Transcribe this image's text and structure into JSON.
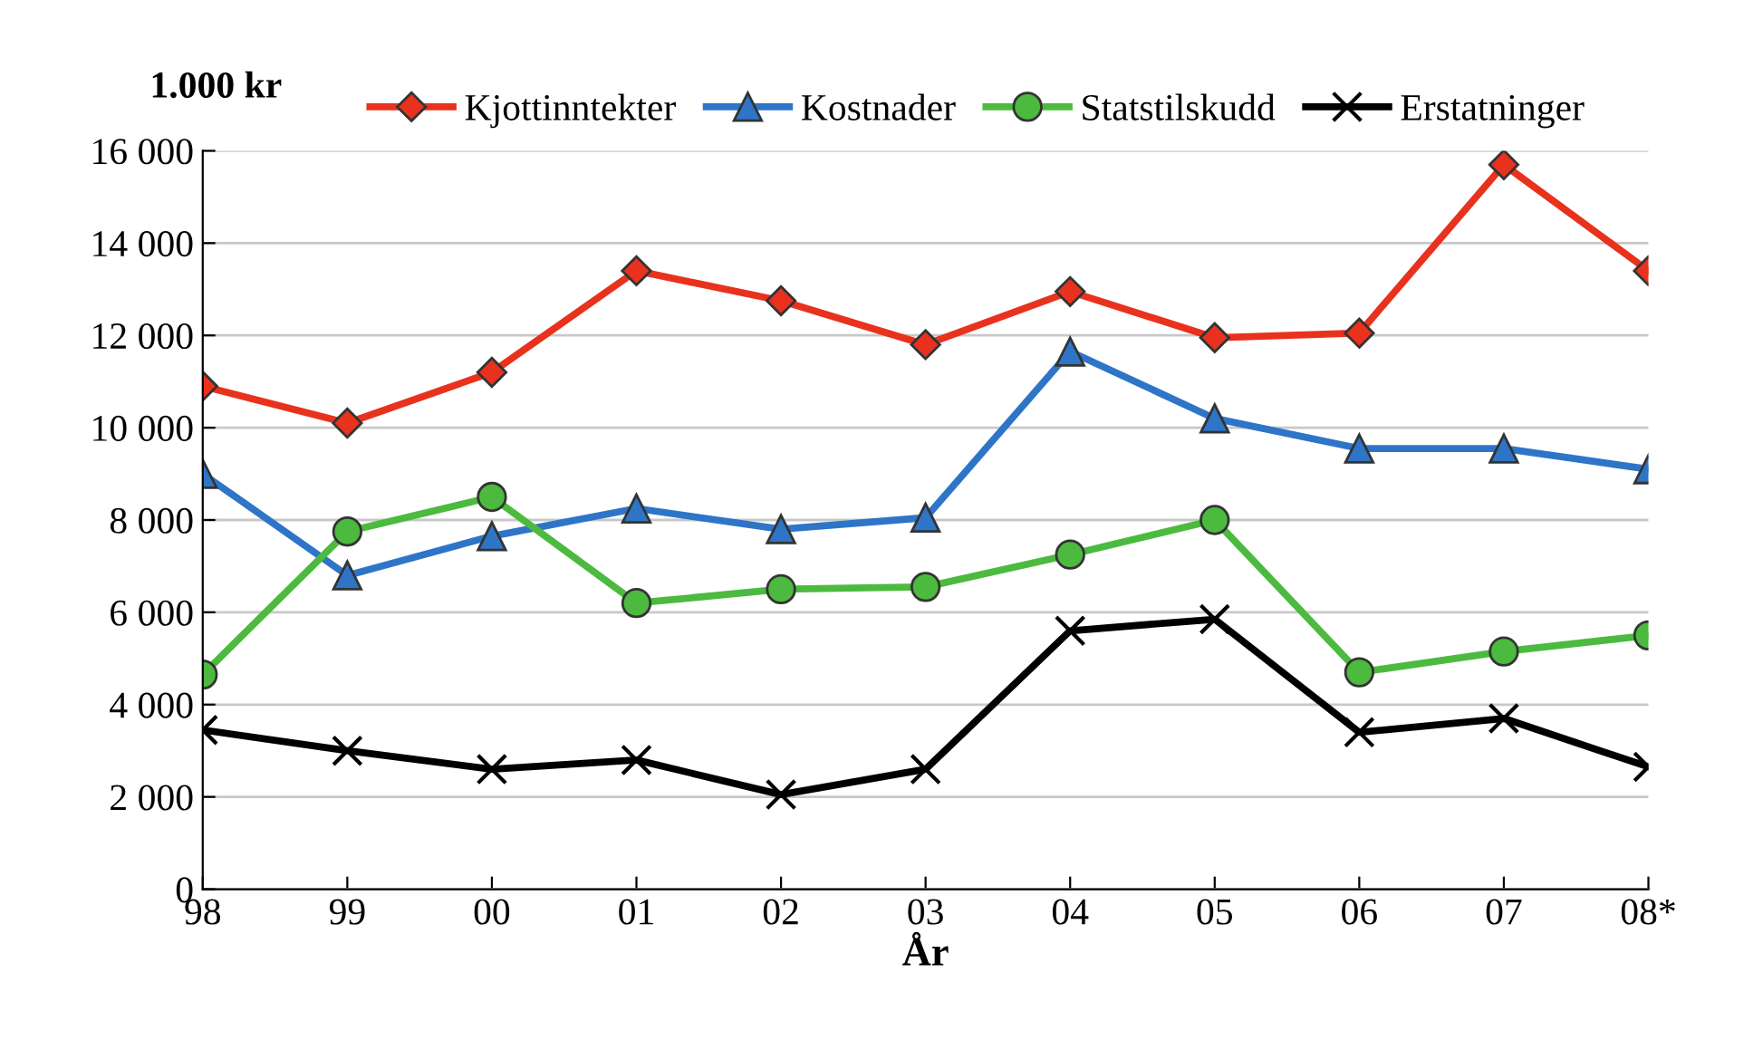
{
  "chart_data": {
    "type": "line",
    "ylabel": "1.000 kr",
    "xlabel": "År",
    "categories": [
      "98",
      "99",
      "00",
      "01",
      "02",
      "03",
      "04",
      "05",
      "06",
      "07",
      "08*"
    ],
    "series": [
      {
        "name": "Kjottinntekter",
        "color": "#e8321e",
        "marker": "diamond",
        "values": [
          10900,
          10100,
          11200,
          13400,
          12750,
          11800,
          12950,
          11950,
          12050,
          15700,
          13400
        ]
      },
      {
        "name": "Kostnader",
        "color": "#2e75c8",
        "marker": "triangle",
        "values": [
          9000,
          6800,
          7650,
          8250,
          7800,
          8050,
          11650,
          10200,
          9550,
          9550,
          9100
        ]
      },
      {
        "name": "Statstilskudd",
        "color": "#4cba3e",
        "marker": "circle",
        "values": [
          4650,
          7750,
          8500,
          6200,
          6500,
          6550,
          7250,
          8000,
          4700,
          5150,
          5500
        ]
      },
      {
        "name": "Erstatninger",
        "color": "#000000",
        "marker": "cross",
        "values": [
          3450,
          3000,
          2600,
          2800,
          2050,
          2600,
          5600,
          5850,
          3400,
          3700,
          2650
        ]
      }
    ],
    "ylim": [
      0,
      16000
    ],
    "yticks": [
      0,
      {
        "value": 2000,
        "label": "2 000"
      },
      {
        "value": 4000,
        "label": "4 000"
      },
      {
        "value": 6000,
        "label": "6 000"
      },
      {
        "value": 8000,
        "label": "8 000"
      },
      {
        "value": 10000,
        "label": "10 000"
      },
      {
        "value": 12000,
        "label": "12 000"
      },
      {
        "value": 14000,
        "label": "14 000"
      },
      {
        "value": 16000,
        "label": "16 000"
      }
    ],
    "grid": "y",
    "legend": "top",
    "line_style": "solid"
  }
}
